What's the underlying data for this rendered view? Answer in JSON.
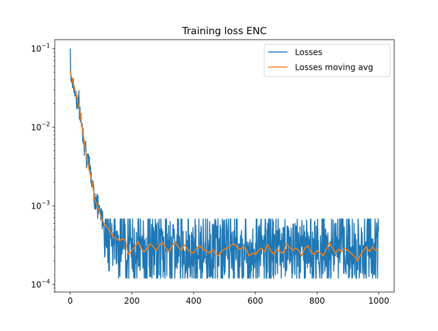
{
  "chart_data": {
    "type": "line",
    "title": "Training loss ENC",
    "xlabel": "",
    "ylabel": "",
    "xlim": [
      -50,
      1050
    ],
    "ylim": [
      8e-05,
      0.13
    ],
    "yscale": "log",
    "x_ticks": [
      0,
      200,
      400,
      600,
      800,
      1000
    ],
    "x_tick_labels": [
      "0",
      "200",
      "400",
      "600",
      "800",
      "1000"
    ],
    "y_ticks": [
      0.0001,
      0.001,
      0.01,
      0.1
    ],
    "y_tick_labels": [
      {
        "base": "10",
        "exp": "−4"
      },
      {
        "base": "10",
        "exp": "−3"
      },
      {
        "base": "10",
        "exp": "−2"
      },
      {
        "base": "10",
        "exp": "−1"
      }
    ],
    "grid": false,
    "legend_position": "upper right",
    "series": [
      {
        "name": "Losses",
        "color": "#1f77b4",
        "x_range": [
          0,
          999
        ],
        "trend_points": [
          [
            0,
            0.1
          ],
          [
            2,
            0.045
          ],
          [
            10,
            0.035
          ],
          [
            20,
            0.025
          ],
          [
            30,
            0.017
          ],
          [
            40,
            0.0095
          ],
          [
            50,
            0.0055
          ],
          [
            60,
            0.0032
          ],
          [
            70,
            0.0022
          ],
          [
            80,
            0.0013
          ],
          [
            90,
            0.001
          ],
          [
            100,
            0.00075
          ],
          [
            110,
            0.00062
          ],
          [
            120,
            0.00055
          ],
          [
            130,
            0.0005
          ],
          [
            150,
            0.00042
          ],
          [
            170,
            0.00038
          ],
          [
            190,
            0.0003
          ],
          [
            200,
            0.00028
          ],
          [
            1000,
            0.00028
          ]
        ],
        "noise_band": {
          "from_x": 110,
          "low": 0.00012,
          "high": 0.00068
        }
      },
      {
        "name": "Losses moving avg",
        "color": "#ff7f0e",
        "points": [
          [
            0,
            0.052
          ],
          [
            5,
            0.043
          ],
          [
            10,
            0.036
          ],
          [
            20,
            0.026
          ],
          [
            30,
            0.017
          ],
          [
            40,
            0.0092
          ],
          [
            50,
            0.0052
          ],
          [
            60,
            0.003
          ],
          [
            70,
            0.0021
          ],
          [
            80,
            0.0012
          ],
          [
            90,
            0.00095
          ],
          [
            100,
            0.00072
          ],
          [
            110,
            0.0006
          ],
          [
            120,
            0.00053
          ],
          [
            130,
            0.00047
          ],
          [
            140,
            0.0004
          ],
          [
            150,
            0.00038
          ],
          [
            160,
            0.00036
          ],
          [
            170,
            0.00038
          ],
          [
            180,
            0.00036
          ],
          [
            185,
            0.00027
          ],
          [
            190,
            0.00024
          ],
          [
            200,
            0.00027
          ],
          [
            210,
            0.0003
          ],
          [
            220,
            0.00035
          ],
          [
            230,
            0.00028
          ],
          [
            240,
            0.00026
          ],
          [
            250,
            0.00029
          ],
          [
            260,
            0.00033
          ],
          [
            270,
            0.0003
          ],
          [
            280,
            0.00027
          ],
          [
            290,
            0.00032
          ],
          [
            300,
            0.00034
          ],
          [
            310,
            0.00029
          ],
          [
            320,
            0.00026
          ],
          [
            330,
            0.00031
          ],
          [
            340,
            0.00035
          ],
          [
            350,
            0.0003
          ],
          [
            360,
            0.00027
          ],
          [
            370,
            0.00032
          ],
          [
            380,
            0.00028
          ],
          [
            390,
            0.00026
          ],
          [
            400,
            0.00025
          ],
          [
            410,
            0.00029
          ],
          [
            420,
            0.00031
          ],
          [
            430,
            0.00028
          ],
          [
            440,
            0.00027
          ],
          [
            450,
            0.00025
          ],
          [
            460,
            0.00028
          ],
          [
            470,
            0.00025
          ],
          [
            480,
            0.00023
          ],
          [
            490,
            0.00026
          ],
          [
            500,
            0.00028
          ],
          [
            510,
            0.00029
          ],
          [
            520,
            0.00031
          ],
          [
            530,
            0.00033
          ],
          [
            540,
            0.0003
          ],
          [
            550,
            0.00028
          ],
          [
            560,
            0.0003
          ],
          [
            570,
            0.00028
          ],
          [
            580,
            0.00023
          ],
          [
            590,
            0.00025
          ],
          [
            600,
            0.00024
          ],
          [
            610,
            0.00027
          ],
          [
            620,
            0.00029
          ],
          [
            630,
            0.00026
          ],
          [
            640,
            0.00032
          ],
          [
            650,
            0.00027
          ],
          [
            660,
            0.00024
          ],
          [
            670,
            0.00028
          ],
          [
            680,
            0.00026
          ],
          [
            690,
            0.00025
          ],
          [
            700,
            0.00033
          ],
          [
            710,
            0.0003
          ],
          [
            720,
            0.00027
          ],
          [
            730,
            0.00029
          ],
          [
            740,
            0.00027
          ],
          [
            750,
            0.00023
          ],
          [
            760,
            0.00029
          ],
          [
            770,
            0.00031
          ],
          [
            780,
            0.00026
          ],
          [
            790,
            0.00024
          ],
          [
            800,
            0.00027
          ],
          [
            810,
            0.00025
          ],
          [
            820,
            0.00023
          ],
          [
            830,
            0.00028
          ],
          [
            840,
            0.00034
          ],
          [
            850,
            0.00029
          ],
          [
            860,
            0.00025
          ],
          [
            870,
            0.00028
          ],
          [
            880,
            0.00026
          ],
          [
            890,
            0.00029
          ],
          [
            900,
            0.00027
          ],
          [
            910,
            0.00025
          ],
          [
            920,
            0.00023
          ],
          [
            930,
            0.0002
          ],
          [
            940,
            0.00023
          ],
          [
            950,
            0.00027
          ],
          [
            960,
            0.0003
          ],
          [
            970,
            0.00026
          ],
          [
            980,
            0.0003
          ],
          [
            990,
            0.00027
          ],
          [
            999,
            0.00028
          ]
        ]
      }
    ]
  }
}
